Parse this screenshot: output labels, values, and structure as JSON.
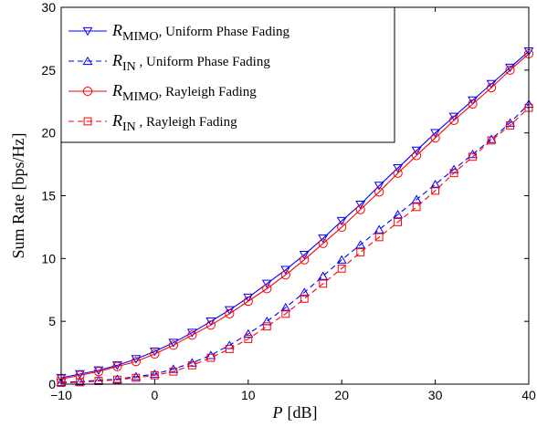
{
  "chart_data": {
    "type": "line",
    "xlabel": "P [dB]",
    "xlabel_parts": {
      "var": "P",
      "unit": "[dB]"
    },
    "ylabel": "Sum Rate [bps/Hz]",
    "xlim": [
      -10,
      40
    ],
    "ylim": [
      0,
      30
    ],
    "xticks": [
      -10,
      0,
      10,
      20,
      30,
      40
    ],
    "yticks": [
      0,
      5,
      10,
      15,
      20,
      25,
      30
    ],
    "xtick_labels": [
      "−10",
      "0",
      "10",
      "20",
      "30",
      "40"
    ],
    "ytick_labels": [
      "0",
      "5",
      "10",
      "15",
      "20",
      "25",
      "30"
    ],
    "grid": false,
    "legend_position": "top-left",
    "x": [
      -10,
      -8,
      -6,
      -4,
      -2,
      0,
      2,
      4,
      6,
      8,
      10,
      12,
      14,
      16,
      18,
      20,
      22,
      24,
      26,
      28,
      30,
      32,
      34,
      36,
      38,
      40
    ],
    "series": [
      {
        "name": "R_MIMO , Uniform Phase Fading",
        "legend_math": "R",
        "legend_sub": "MIMO",
        "legend_rest": ", Uniform Phase Fading",
        "color": "#0000ff",
        "dash": "solid",
        "marker": "triangle-down",
        "values": [
          0.5,
          0.8,
          1.1,
          1.5,
          2.0,
          2.6,
          3.3,
          4.1,
          5.0,
          5.9,
          6.9,
          8.0,
          9.1,
          10.3,
          11.6,
          13.0,
          14.3,
          15.8,
          17.2,
          18.6,
          20.0,
          21.3,
          22.6,
          23.9,
          25.2,
          26.5
        ]
      },
      {
        "name": "R_IN , Uniform Phase Fading",
        "legend_math": "R",
        "legend_sub": "IN",
        "legend_rest": " , Uniform Phase Fading",
        "color": "#0000ff",
        "dash": "dashed",
        "marker": "triangle-up",
        "values": [
          0.15,
          0.2,
          0.3,
          0.4,
          0.6,
          0.8,
          1.2,
          1.7,
          2.3,
          3.1,
          4.0,
          5.0,
          6.1,
          7.3,
          8.6,
          9.9,
          11.1,
          12.3,
          13.5,
          14.7,
          15.9,
          17.1,
          18.3,
          19.5,
          20.8,
          22.3
        ]
      },
      {
        "name": "R_MIMO , Rayleigh Fading",
        "legend_math": "R",
        "legend_sub": "MIMO",
        "legend_rest": ", Rayleigh Fading",
        "color": "#ff0000",
        "dash": "solid",
        "marker": "circle",
        "values": [
          0.4,
          0.7,
          1.0,
          1.4,
          1.8,
          2.4,
          3.1,
          3.9,
          4.7,
          5.6,
          6.6,
          7.6,
          8.7,
          9.9,
          11.2,
          12.5,
          13.9,
          15.3,
          16.8,
          18.2,
          19.6,
          21.0,
          22.3,
          23.6,
          25.0,
          26.3
        ]
      },
      {
        "name": "R_IN , Rayleigh Fading",
        "legend_math": "R",
        "legend_sub": "IN",
        "legend_rest": " , Rayleigh Fading",
        "color": "#ff0000",
        "dash": "dashed",
        "marker": "square",
        "values": [
          0.1,
          0.15,
          0.25,
          0.35,
          0.5,
          0.7,
          1.0,
          1.5,
          2.1,
          2.8,
          3.6,
          4.6,
          5.6,
          6.8,
          8.0,
          9.2,
          10.5,
          11.7,
          12.9,
          14.1,
          15.4,
          16.8,
          18.1,
          19.4,
          20.6,
          22.0
        ]
      }
    ]
  }
}
